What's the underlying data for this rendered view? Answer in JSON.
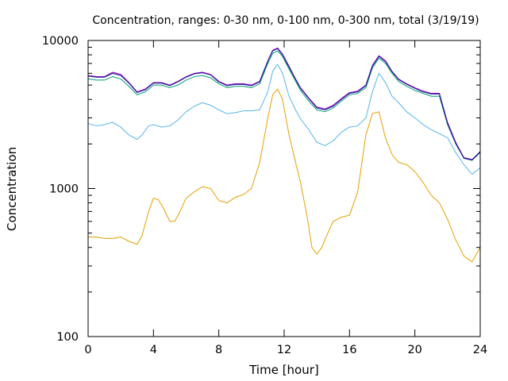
{
  "chart_data": {
    "type": "line",
    "title": "Concentration, ranges: 0-30 nm, 0-100 nm, 0-300 nm, total (3/19/19)",
    "xlabel": "Time [hour]",
    "ylabel": "Concentration",
    "xlim": [
      0,
      24
    ],
    "ylim": [
      100,
      10000
    ],
    "yscale": "log",
    "xticks": [
      0,
      4,
      8,
      12,
      16,
      20,
      24
    ],
    "xtick_labels": [
      "0",
      "4",
      "8",
      "12",
      "16",
      "20",
      "24"
    ],
    "yticks": [
      100,
      1000,
      10000
    ],
    "ytick_labels": [
      "100",
      "1000",
      "10000"
    ],
    "grid": false,
    "legend": "none",
    "series": [
      {
        "color": "#e69f00",
        "x": [
          0,
          0.5,
          1,
          1.5,
          2,
          2.5,
          3,
          3.3,
          3.7,
          4,
          4.3,
          4.6,
          5,
          5.3,
          5.6,
          6,
          6.5,
          7,
          7.5,
          8,
          8.5,
          9,
          9.5,
          10,
          10.5,
          11,
          11.3,
          11.6,
          11.9,
          12.3,
          12.7,
          13,
          13.4,
          13.7,
          14,
          14.3,
          14.6,
          15,
          15.5,
          16,
          16.5,
          17,
          17.4,
          17.8,
          18.2,
          18.6,
          19,
          19.5,
          20,
          20.5,
          21,
          21.5,
          22,
          22.5,
          23,
          23.5,
          24
        ],
        "y": [
          470,
          470,
          460,
          460,
          470,
          440,
          420,
          480,
          700,
          860,
          840,
          740,
          600,
          600,
          690,
          860,
          950,
          1030,
          1000,
          830,
          800,
          870,
          910,
          1000,
          1500,
          3000,
          4300,
          4700,
          4000,
          2300,
          1500,
          1100,
          650,
          400,
          360,
          400,
          480,
          600,
          640,
          660,
          950,
          2300,
          3200,
          3300,
          2200,
          1700,
          1500,
          1450,
          1300,
          1100,
          900,
          800,
          620,
          450,
          350,
          320,
          400
        ]
      },
      {
        "color": "#56b4e9",
        "x": [
          0,
          0.5,
          1,
          1.5,
          2,
          2.5,
          3,
          3.3,
          3.7,
          4,
          4.5,
          5,
          5.5,
          6,
          6.5,
          7,
          7.5,
          8,
          8.5,
          9,
          9.5,
          10,
          10.5,
          11,
          11.3,
          11.6,
          11.9,
          12.3,
          12.7,
          13,
          13.5,
          14,
          14.5,
          15,
          15.5,
          16,
          16.5,
          17,
          17.4,
          17.8,
          18.2,
          18.6,
          19,
          19.5,
          20,
          20.5,
          21,
          21.5,
          22,
          22.5,
          23,
          23.5,
          24
        ],
        "y": [
          2750,
          2650,
          2700,
          2800,
          2600,
          2300,
          2150,
          2300,
          2650,
          2700,
          2600,
          2650,
          2900,
          3300,
          3600,
          3800,
          3650,
          3400,
          3200,
          3250,
          3350,
          3350,
          3400,
          4500,
          6200,
          6900,
          6000,
          4200,
          3400,
          2950,
          2500,
          2050,
          1950,
          2100,
          2400,
          2600,
          2650,
          3000,
          4500,
          6000,
          5200,
          4200,
          3800,
          3300,
          3000,
          2700,
          2500,
          2350,
          2200,
          1750,
          1450,
          1250,
          1380
        ]
      },
      {
        "color": "#009e73",
        "x": [
          0,
          0.5,
          1,
          1.5,
          2,
          2.5,
          3,
          3.5,
          4,
          4.5,
          5,
          5.5,
          6,
          6.5,
          7,
          7.5,
          8,
          8.5,
          9,
          9.5,
          10,
          10.5,
          11,
          11.3,
          11.6,
          11.9,
          12.3,
          12.7,
          13,
          13.5,
          14,
          14.5,
          15,
          15.5,
          16,
          16.5,
          17,
          17.4,
          17.8,
          18.2,
          18.6,
          19,
          19.5,
          20,
          20.5,
          21,
          21.5,
          22,
          22.5,
          23,
          23.5,
          24
        ],
        "y": [
          5500,
          5400,
          5400,
          5700,
          5500,
          4900,
          4300,
          4500,
          5000,
          5000,
          4800,
          5000,
          5400,
          5700,
          5800,
          5600,
          5100,
          4800,
          4900,
          4900,
          4800,
          5100,
          7000,
          8200,
          8500,
          7800,
          6400,
          5300,
          4600,
          3900,
          3400,
          3300,
          3500,
          3900,
          4300,
          4400,
          4800,
          6500,
          7600,
          7000,
          6000,
          5300,
          4900,
          4600,
          4400,
          4200,
          4200,
          2700,
          2000,
          1600,
          1550,
          1750
        ]
      },
      {
        "color": "#9400d3",
        "x": [
          0,
          0.5,
          1,
          1.5,
          2,
          2.5,
          3,
          3.5,
          4,
          4.5,
          5,
          5.5,
          6,
          6.5,
          7,
          7.5,
          8,
          8.5,
          9,
          9.5,
          10,
          10.5,
          11,
          11.3,
          11.6,
          11.9,
          12.3,
          12.7,
          13,
          13.5,
          14,
          14.5,
          15,
          15.5,
          16,
          16.5,
          17,
          17.4,
          17.8,
          18.2,
          18.6,
          19,
          19.5,
          20,
          20.5,
          21,
          21.5,
          22,
          22.5,
          23,
          23.5,
          24
        ],
        "y": [
          5800,
          5700,
          5700,
          6100,
          5900,
          5200,
          4500,
          4700,
          5200,
          5200,
          5000,
          5300,
          5700,
          6000,
          6100,
          5900,
          5300,
          5000,
          5100,
          5100,
          5000,
          5300,
          7300,
          8600,
          8900,
          8100,
          6700,
          5500,
          4800,
          4100,
          3550,
          3450,
          3650,
          4050,
          4450,
          4550,
          5000,
          6800,
          7900,
          7300,
          6200,
          5500,
          5100,
          4800,
          4550,
          4400,
          4400,
          2800,
          2050,
          1620,
          1570,
          1780
        ]
      },
      {
        "color": "#1a1a8c",
        "x": [
          0,
          0.5,
          1,
          1.5,
          2,
          2.5,
          3,
          3.5,
          4,
          4.5,
          5,
          5.5,
          6,
          6.5,
          7,
          7.5,
          8,
          8.5,
          9,
          9.5,
          10,
          10.5,
          11,
          11.3,
          11.6,
          11.9,
          12.3,
          12.7,
          13,
          13.5,
          14,
          14.5,
          15,
          15.5,
          16,
          16.5,
          17,
          17.4,
          17.8,
          18.2,
          18.6,
          19,
          19.5,
          20,
          20.5,
          21,
          21.5,
          22,
          22.5,
          23,
          23.5,
          24
        ],
        "y": [
          5750,
          5650,
          5650,
          6000,
          5800,
          5150,
          4450,
          4650,
          5150,
          5150,
          4950,
          5250,
          5650,
          5950,
          6050,
          5850,
          5250,
          4950,
          5050,
          5050,
          4950,
          5250,
          7250,
          8500,
          8800,
          8000,
          6600,
          5450,
          4750,
          4050,
          3500,
          3400,
          3600,
          4000,
          4400,
          4500,
          4950,
          6700,
          7800,
          7200,
          6150,
          5450,
          5050,
          4750,
          4500,
          4350,
          4350,
          2750,
          2020,
          1600,
          1560,
          1770
        ]
      }
    ]
  }
}
